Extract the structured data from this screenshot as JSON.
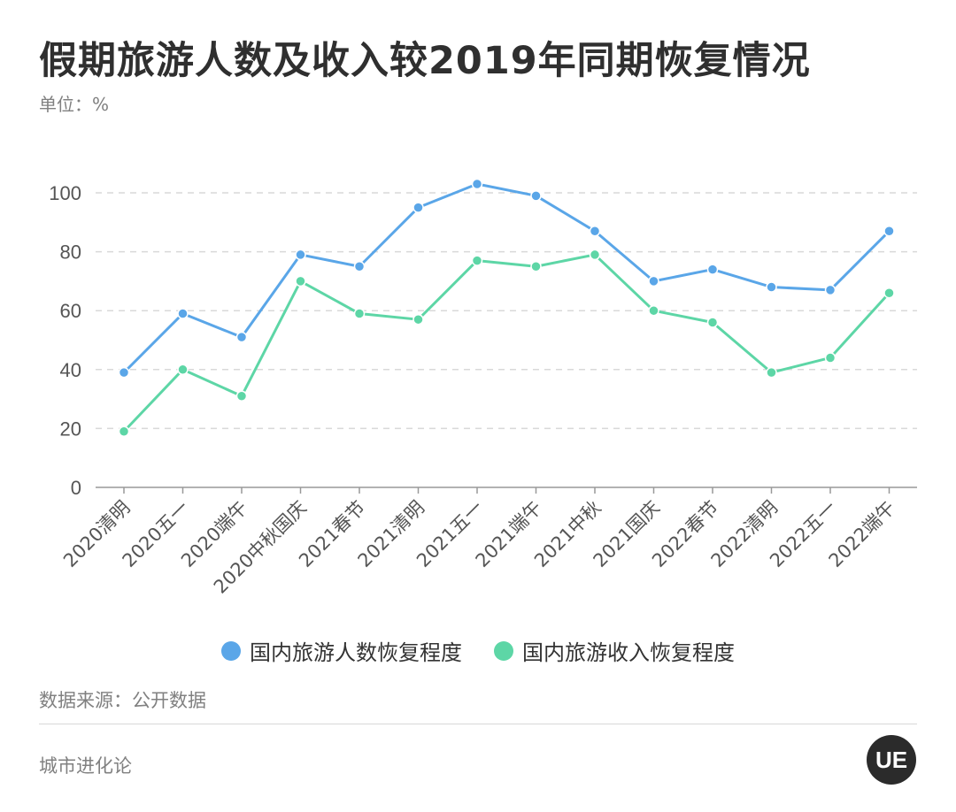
{
  "header": {
    "title": "假期旅游人数及收入较2019年同期恢复情况",
    "unit": "单位：%"
  },
  "footer": {
    "source": "数据来源：公开数据",
    "brand": "城市进化论",
    "logo_text": "UE"
  },
  "colors": {
    "series1": "#5aa6e8",
    "series2": "#5dd6a6",
    "grid": "#d9d9d9",
    "axis": "#999999",
    "tick_text": "#555555"
  },
  "chart_data": {
    "type": "line",
    "title": "假期旅游人数及收入较2019年同期恢复情况",
    "ylabel": "",
    "xlabel": "",
    "ylim": [
      0,
      100
    ],
    "yticks": [
      0,
      20,
      40,
      60,
      80,
      100
    ],
    "categories": [
      "2020清明",
      "2020五一",
      "2020端午",
      "2020中秋国庆",
      "2021春节",
      "2021清明",
      "2021五一",
      "2021端午",
      "2021中秋",
      "2021国庆",
      "2022春节",
      "2022清明",
      "2022五一",
      "2022端午"
    ],
    "series": [
      {
        "name": "国内旅游人数恢复程度",
        "values": [
          39,
          59,
          51,
          79,
          75,
          95,
          103,
          99,
          87,
          70,
          74,
          68,
          67,
          87
        ]
      },
      {
        "name": "国内旅游收入恢复程度",
        "values": [
          19,
          40,
          31,
          70,
          59,
          57,
          77,
          75,
          79,
          60,
          56,
          39,
          44,
          66
        ]
      }
    ],
    "grid": true,
    "legend_position": "bottom"
  }
}
